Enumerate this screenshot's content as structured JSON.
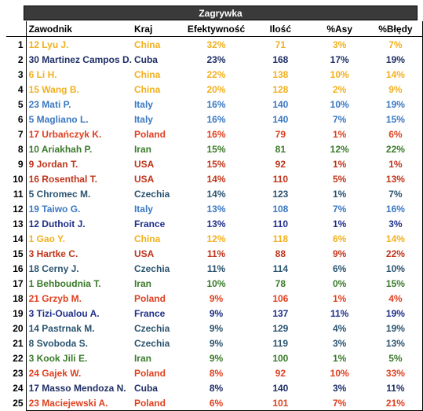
{
  "table": {
    "title": "Zagrywka",
    "headers": [
      "Zawodnik",
      "Kraj",
      "Efektywność",
      "Ilość",
      "%Asy",
      "%Błędy"
    ],
    "colors": {
      "China": "#f2b01e",
      "Cuba": "#1f2f66",
      "Italy": "#3a78c2",
      "Poland": "#e0401f",
      "Iran": "#3a7a2a",
      "USA": "#c0341a",
      "Czechia": "#2a5470",
      "France": "#1f2f8a"
    },
    "rows": [
      {
        "rank": "1",
        "player": "12 Lyu J.",
        "country": "China",
        "eff": "32%",
        "qty": "71",
        "asy": "3%",
        "err": "7%"
      },
      {
        "rank": "2",
        "player": "30 Martinez Campos D.",
        "country": "Cuba",
        "eff": "23%",
        "qty": "168",
        "asy": "17%",
        "err": "19%"
      },
      {
        "rank": "3",
        "player": "6 Li H.",
        "country": "China",
        "eff": "22%",
        "qty": "138",
        "asy": "10%",
        "err": "14%"
      },
      {
        "rank": "4",
        "player": "15 Wang B.",
        "country": "China",
        "eff": "20%",
        "qty": "128",
        "asy": "2%",
        "err": "9%"
      },
      {
        "rank": "5",
        "player": "23 Mati P.",
        "country": "Italy",
        "eff": "16%",
        "qty": "140",
        "asy": "10%",
        "err": "19%"
      },
      {
        "rank": "6",
        "player": "5 Magliano L.",
        "country": "Italy",
        "eff": "16%",
        "qty": "140",
        "asy": "7%",
        "err": "15%"
      },
      {
        "rank": "7",
        "player": "17 Urbańczyk K.",
        "country": "Poland",
        "eff": "16%",
        "qty": "79",
        "asy": "1%",
        "err": "6%"
      },
      {
        "rank": "8",
        "player": "10 Ariakhah P.",
        "country": "Iran",
        "eff": "15%",
        "qty": "81",
        "asy": "12%",
        "err": "22%"
      },
      {
        "rank": "9",
        "player": "9 Jordan T.",
        "country": "USA",
        "eff": "15%",
        "qty": "92",
        "asy": "1%",
        "err": "1%"
      },
      {
        "rank": "10",
        "player": "16 Rosenthal T.",
        "country": "USA",
        "eff": "14%",
        "qty": "110",
        "asy": "5%",
        "err": "13%"
      },
      {
        "rank": "11",
        "player": "5 Chromec M.",
        "country": "Czechia",
        "eff": "14%",
        "qty": "123",
        "asy": "1%",
        "err": "7%"
      },
      {
        "rank": "12",
        "player": "19 Taiwo G.",
        "country": "Italy",
        "eff": "13%",
        "qty": "108",
        "asy": "7%",
        "err": "16%"
      },
      {
        "rank": "13",
        "player": "12 Duthoit J.",
        "country": "France",
        "eff": "13%",
        "qty": "110",
        "asy": "1%",
        "err": "3%"
      },
      {
        "rank": "14",
        "player": "1 Gao Y.",
        "country": "China",
        "eff": "12%",
        "qty": "118",
        "asy": "6%",
        "err": "14%"
      },
      {
        "rank": "15",
        "player": "3 Hartke C.",
        "country": "USA",
        "eff": "11%",
        "qty": "88",
        "asy": "9%",
        "err": "22%"
      },
      {
        "rank": "16",
        "player": "18 Cerny J.",
        "country": "Czechia",
        "eff": "11%",
        "qty": "114",
        "asy": "6%",
        "err": "10%"
      },
      {
        "rank": "17",
        "player": "1 Behboudnia T.",
        "country": "Iran",
        "eff": "10%",
        "qty": "78",
        "asy": "0%",
        "err": "15%"
      },
      {
        "rank": "18",
        "player": "21 Grzyb M.",
        "country": "Poland",
        "eff": "9%",
        "qty": "106",
        "asy": "1%",
        "err": "4%"
      },
      {
        "rank": "19",
        "player": "3 Tizi-Oualou A.",
        "country": "France",
        "eff": "9%",
        "qty": "137",
        "asy": "11%",
        "err": "19%"
      },
      {
        "rank": "20",
        "player": "14 Pastrnak M.",
        "country": "Czechia",
        "eff": "9%",
        "qty": "129",
        "asy": "4%",
        "err": "19%"
      },
      {
        "rank": "21",
        "player": "8 Svoboda S.",
        "country": "Czechia",
        "eff": "9%",
        "qty": "119",
        "asy": "3%",
        "err": "13%"
      },
      {
        "rank": "22",
        "player": "3 Kook Jili E.",
        "country": "Iran",
        "eff": "9%",
        "qty": "100",
        "asy": "1%",
        "err": "5%"
      },
      {
        "rank": "23",
        "player": "24 Gajek W.",
        "country": "Poland",
        "eff": "8%",
        "qty": "92",
        "asy": "10%",
        "err": "33%"
      },
      {
        "rank": "24",
        "player": "17 Masso Mendoza N.",
        "country": "Cuba",
        "eff": "8%",
        "qty": "140",
        "asy": "3%",
        "err": "11%"
      },
      {
        "rank": "25",
        "player": "23 Maciejewski A.",
        "country": "Poland",
        "eff": "6%",
        "qty": "101",
        "asy": "7%",
        "err": "21%"
      }
    ]
  }
}
